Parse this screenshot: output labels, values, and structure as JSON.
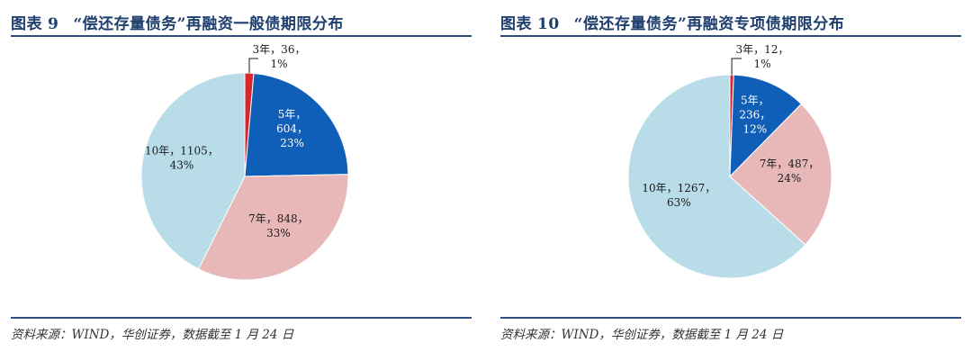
{
  "figures": [
    {
      "title_prefix": "图表",
      "title_number": "9",
      "title_text": "“偿还存量债务”再融资一般债期限分布",
      "source": "资料来源：WIND，华创证券，数据截至 1 月 24 日"
    },
    {
      "title_prefix": "图表",
      "title_number": "10",
      "title_text": "“偿还存量债务”再融资专项债期限分布",
      "source": "资料来源：WIND，华创证券，数据截至 1 月 24 日"
    }
  ],
  "chart_data": [
    {
      "type": "pie",
      "title": "“偿还存量债务”再融资一般债期限分布",
      "start": "top",
      "direction": "clockwise",
      "slices": [
        {
          "label": "3年",
          "value": 36,
          "percent": "1%",
          "color": "#d7262e"
        },
        {
          "label": "5年",
          "value": 604,
          "percent": "23%",
          "color": "#0f5fb8"
        },
        {
          "label": "7年",
          "value": 848,
          "percent": "33%",
          "color": "#e8b8b9"
        },
        {
          "label": "10年",
          "value": 1105,
          "percent": "43%",
          "color": "#b8dde9"
        }
      ]
    },
    {
      "type": "pie",
      "title": "“偿还存量债务”再融资专项债期限分布",
      "start": "top",
      "direction": "clockwise",
      "slices": [
        {
          "label": "3年",
          "value": 12,
          "percent": "1%",
          "color": "#d7262e"
        },
        {
          "label": "5年",
          "value": 236,
          "percent": "12%",
          "color": "#0f5fb8"
        },
        {
          "label": "7年",
          "value": 487,
          "percent": "24%",
          "color": "#e8b8b9"
        },
        {
          "label": "10年",
          "value": 1267,
          "percent": "63%",
          "color": "#b8dde9"
        }
      ]
    }
  ]
}
